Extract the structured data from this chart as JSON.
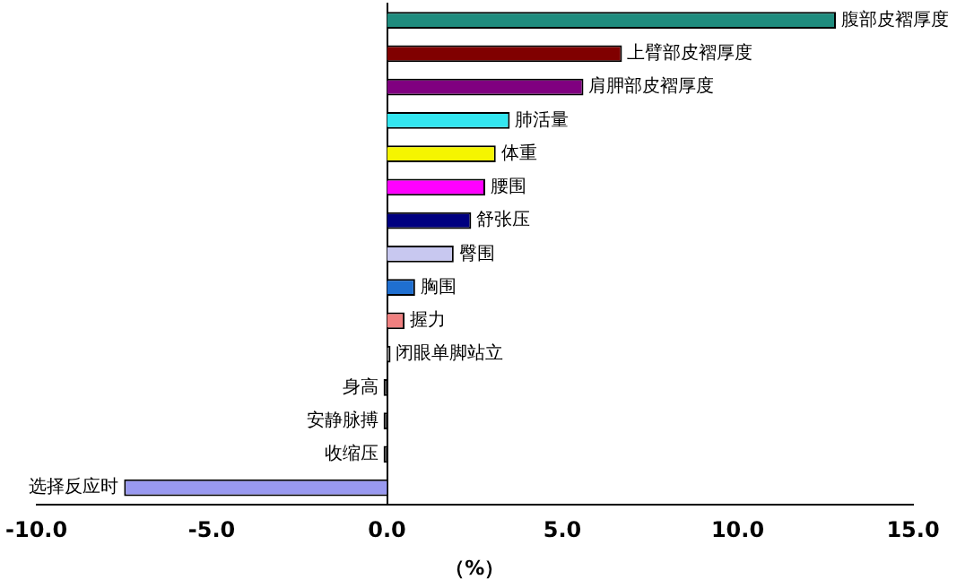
{
  "chart_data": {
    "type": "bar",
    "orientation": "horizontal",
    "xlabel": "（%）",
    "categories": [
      "腹部皮褶厚度",
      "上臂部皮褶厚度",
      "肩胛部皮褶厚度",
      "肺活量",
      "体重",
      "腰围",
      "舒张压",
      "臀围",
      "胸围",
      "握力",
      "闭眼单脚站立",
      "身高",
      "安静脉搏",
      "收缩压",
      "选择反应时"
    ],
    "values": [
      12.8,
      6.7,
      5.6,
      3.5,
      3.1,
      2.8,
      2.4,
      1.9,
      0.8,
      0.5,
      0.1,
      -0.1,
      -0.1,
      -0.1,
      -7.5
    ],
    "colors": [
      "#1f8c7e",
      "#800000",
      "#800080",
      "#33e6f0",
      "#f5f500",
      "#ff00ff",
      "#000080",
      "#c8c8f0",
      "#1f6fd0",
      "#f08080",
      "#808080",
      "#404040",
      "#404040",
      "#404040",
      "#9999f0"
    ],
    "xlim": [
      -10,
      15
    ],
    "xticks": [
      {
        "value": -10,
        "label": "-10.0"
      },
      {
        "value": -5,
        "label": "-5.0"
      },
      {
        "value": 0,
        "label": "0.0"
      },
      {
        "value": 5,
        "label": "5.0"
      },
      {
        "value": 10,
        "label": "10.0"
      },
      {
        "value": 15,
        "label": "15.0"
      }
    ],
    "grid": false,
    "legend": false
  }
}
